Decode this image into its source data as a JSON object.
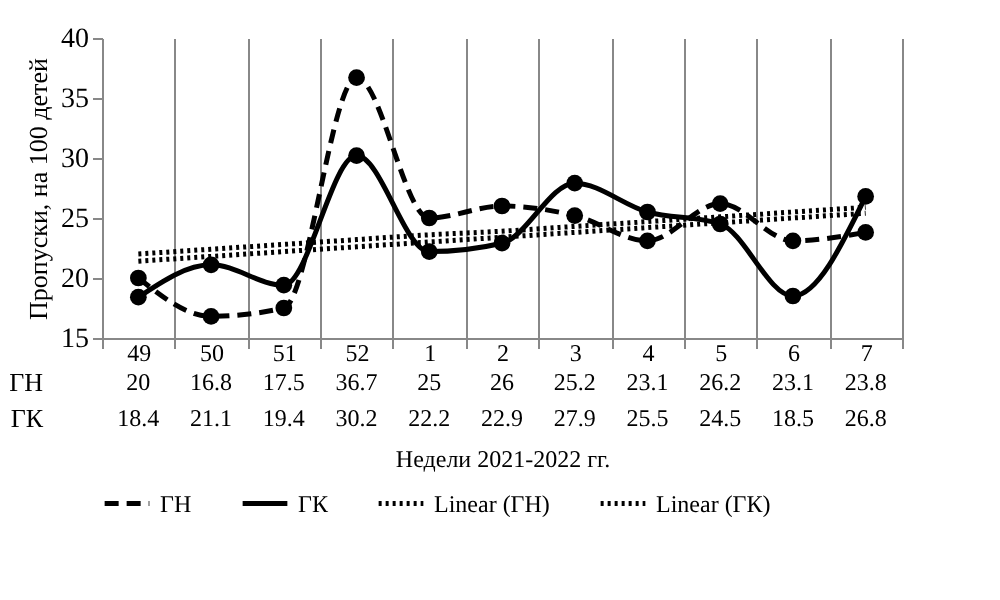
{
  "chart_data": {
    "type": "line",
    "ylabel": "Пропуски, на 100 детей",
    "xlabel": "Недели 2021-2022 гг.",
    "categories": [
      "49",
      "50",
      "51",
      "52",
      "1",
      "2",
      "3",
      "4",
      "5",
      "6",
      "7"
    ],
    "ylim": [
      15,
      40
    ],
    "yticks": [
      15,
      20,
      25,
      30,
      35,
      40
    ],
    "legend": "bottom",
    "marker": "circle",
    "series": [
      {
        "name": "ГН",
        "color": "#000000",
        "line_style": "dashed",
        "values": [
          20,
          16.8,
          17.5,
          36.7,
          25,
          26,
          25.2,
          23.1,
          26.2,
          23.1,
          23.8
        ],
        "value_labels": [
          "20",
          "16.8",
          "17.5",
          "36.7",
          "25",
          "26",
          "25.2",
          "23.1",
          "26.2",
          "23.1",
          "23.8"
        ]
      },
      {
        "name": "ГК",
        "color": "#000000",
        "line_style": "solid",
        "values": [
          18.4,
          21.1,
          19.4,
          30.2,
          22.2,
          22.9,
          27.9,
          25.5,
          24.5,
          18.5,
          26.8
        ],
        "value_labels": [
          "18.4",
          "21.1",
          "19.4",
          "30.2",
          "22.2",
          "22.9",
          "27.9",
          "25.5",
          "24.5",
          "18.5",
          "26.8"
        ]
      },
      {
        "name": "Linear (ГН)",
        "color": "#000000",
        "line_style": "dotted",
        "marker": "none",
        "values": [
          22.0,
          22.4,
          22.8,
          23.2,
          23.6,
          23.9,
          24.3,
          24.7,
          25.1,
          25.5,
          25.9
        ]
      },
      {
        "name": "Linear (ГК)",
        "color": "#000000",
        "line_style": "dotted",
        "marker": "none",
        "values": [
          21.4,
          21.8,
          22.2,
          22.6,
          23.0,
          23.4,
          23.8,
          24.2,
          24.6,
          25.0,
          25.4
        ]
      }
    ]
  }
}
